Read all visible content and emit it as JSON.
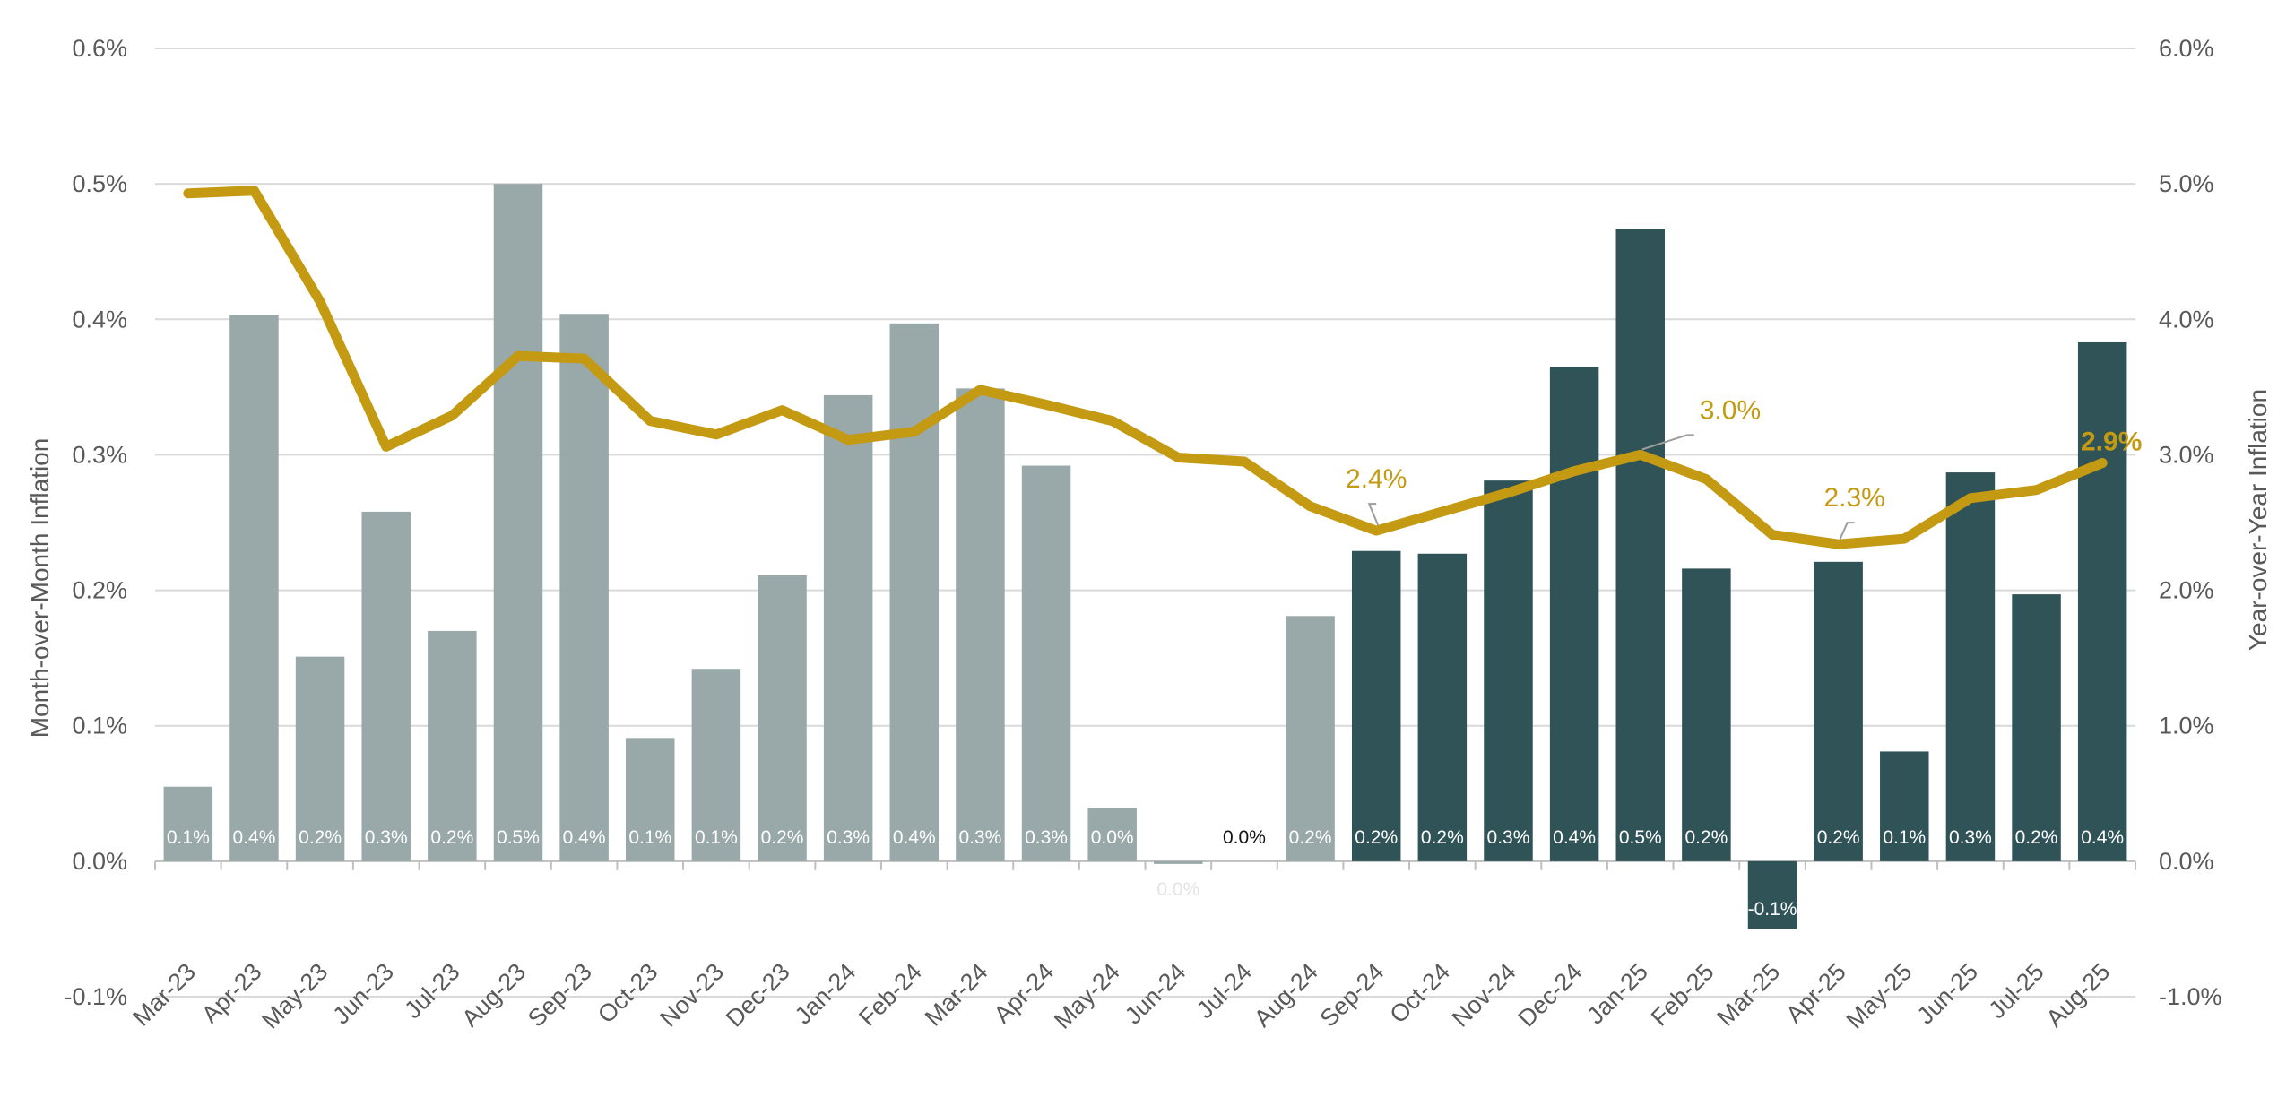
{
  "chart_data": {
    "type": "bar",
    "categories": [
      "Mar-23",
      "Apr-23",
      "May-23",
      "Jun-23",
      "Jul-23",
      "Aug-23",
      "Sep-23",
      "Oct-23",
      "Nov-23",
      "Dec-23",
      "Jan-24",
      "Feb-24",
      "Mar-24",
      "Apr-24",
      "May-24",
      "Jun-24",
      "Jul-24",
      "Aug-24",
      "Sep-24",
      "Oct-24",
      "Nov-24",
      "Dec-24",
      "Jan-25",
      "Feb-25",
      "Mar-25",
      "Apr-25",
      "May-25",
      "Jun-25",
      "Jul-25",
      "Aug-25"
    ],
    "y_left_label": "Month-over-Month Inflation",
    "y_right_label": "Year-over-Year Inflation",
    "y_left_range": [
      -0.1,
      0.6
    ],
    "y_right_range": [
      -1.0,
      6.0
    ],
    "y_left_ticks": [
      "-0.1%",
      "0.0%",
      "0.1%",
      "0.2%",
      "0.3%",
      "0.4%",
      "0.5%",
      "0.6%"
    ],
    "y_right_ticks": [
      "-1.0%",
      "0.0%",
      "1.0%",
      "2.0%",
      "3.0%",
      "4.0%",
      "5.0%",
      "6.0%"
    ],
    "grid": true,
    "series": [
      {
        "type": "bar",
        "axis": "left",
        "values": [
          0.055,
          0.403,
          0.151,
          0.258,
          0.17,
          0.5,
          0.404,
          0.091,
          0.142,
          0.211,
          0.344,
          0.397,
          0.349,
          0.292,
          0.039,
          -0.002,
          0.0,
          0.181,
          0.229,
          0.227,
          0.281,
          0.365,
          0.467,
          0.216,
          -0.05,
          0.221,
          0.081,
          0.287,
          0.197,
          0.383
        ],
        "data_labels": [
          "0.1%",
          "0.4%",
          "0.2%",
          "0.3%",
          "0.2%",
          "0.5%",
          "0.4%",
          "0.1%",
          "0.1%",
          "0.2%",
          "0.3%",
          "0.4%",
          "0.3%",
          "0.3%",
          "0.0%",
          "0.0%",
          "0.0%",
          "0.2%",
          "0.2%",
          "0.2%",
          "0.3%",
          "0.4%",
          "0.5%",
          "0.2%",
          "-0.1%",
          "0.2%",
          "0.1%",
          "0.3%",
          "0.2%",
          "0.4%"
        ],
        "colors": [
          "#99a8a8",
          "#99a8a8",
          "#99a8a8",
          "#99a8a8",
          "#99a8a8",
          "#99a8a8",
          "#99a8a8",
          "#99a8a8",
          "#99a8a8",
          "#99a8a8",
          "#99a8a8",
          "#99a8a8",
          "#99a8a8",
          "#99a8a8",
          "#99a8a8",
          "#99a8a8",
          "#99a8a8",
          "#99a8a8",
          "#2f5357",
          "#2f5357",
          "#2f5357",
          "#2f5357",
          "#2f5357",
          "#2f5357",
          "#2f5357",
          "#2f5357",
          "#2f5357",
          "#2f5357",
          "#2f5357",
          "#2f5357"
        ]
      },
      {
        "type": "line",
        "axis": "right",
        "color": "#c49a12",
        "values": [
          4.93,
          4.95,
          4.13,
          3.06,
          3.29,
          3.73,
          3.71,
          3.25,
          3.15,
          3.33,
          3.11,
          3.17,
          3.48,
          3.37,
          3.25,
          2.98,
          2.95,
          2.62,
          2.44,
          2.58,
          2.72,
          2.88,
          3.0,
          2.82,
          2.41,
          2.34,
          2.38,
          2.68,
          2.74,
          2.94
        ],
        "annotations": [
          {
            "index": 18,
            "label": "2.4%"
          },
          {
            "index": 22,
            "label": "3.0%"
          },
          {
            "index": 25,
            "label": "2.3%"
          },
          {
            "index": 29,
            "label": "2.9%"
          }
        ]
      }
    ]
  },
  "colors": {
    "bar_past": "#99a8a8",
    "bar_recent": "#2f5357",
    "line": "#c49a12",
    "grid": "#d9d9d9",
    "text": "#595959"
  }
}
